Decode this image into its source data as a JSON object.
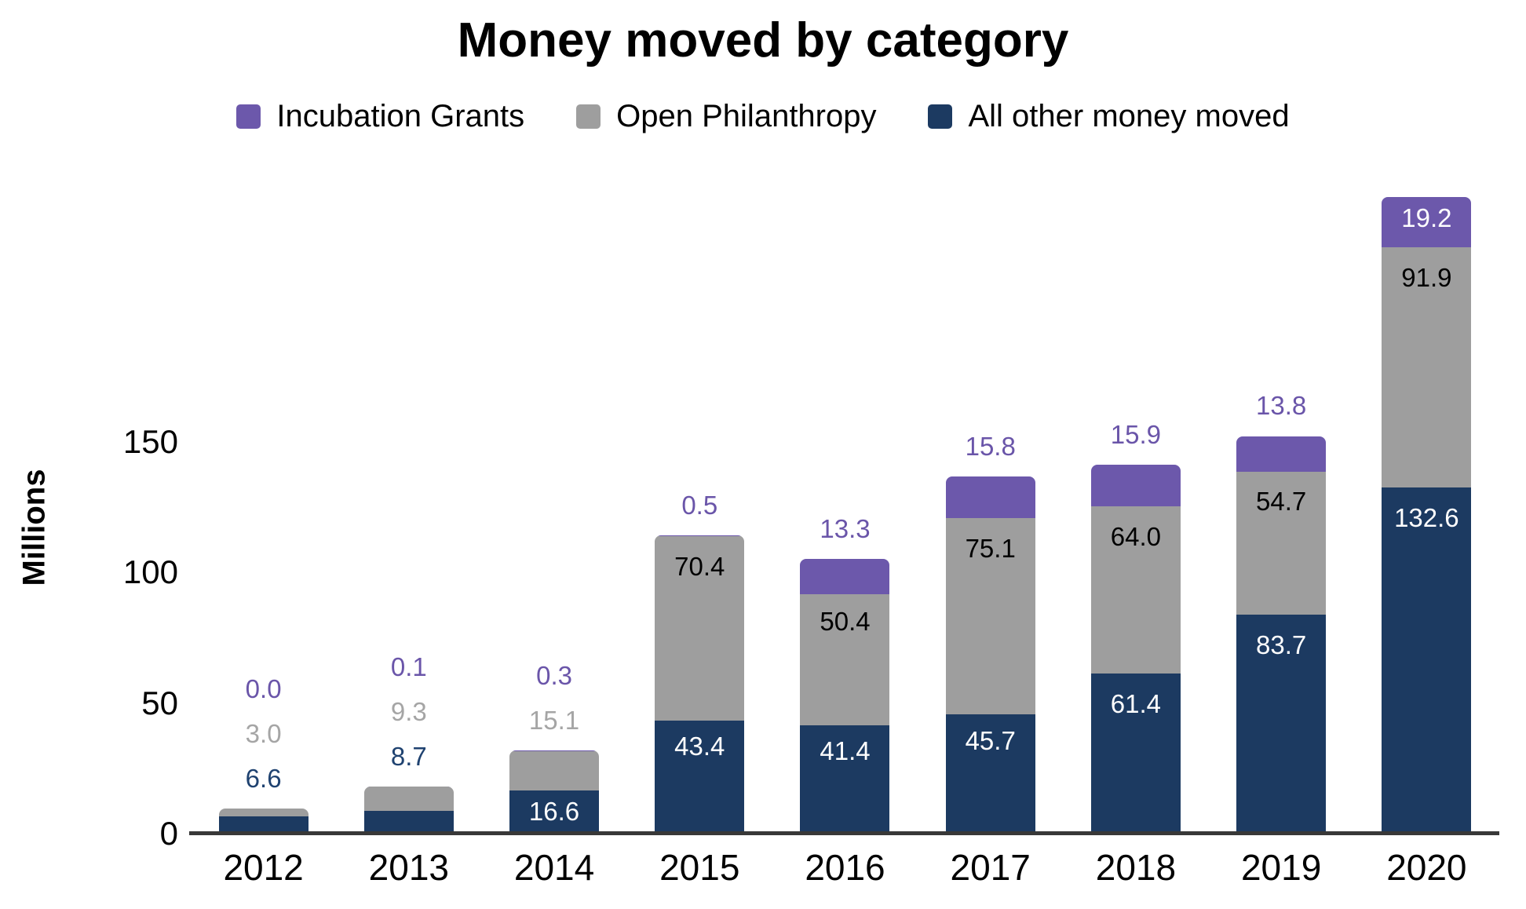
{
  "chart_title": "Money moved by category",
  "y_axis_title": "Millions",
  "chart_data": {
    "type": "bar",
    "stacked": true,
    "title": "Money moved by category",
    "xlabel": "",
    "ylabel": "Millions",
    "legend_position": "top",
    "grid": false,
    "categories": [
      "2012",
      "2013",
      "2014",
      "2015",
      "2016",
      "2017",
      "2018",
      "2019",
      "2020"
    ],
    "yticks": [
      0,
      50,
      100,
      150
    ],
    "ylim": [
      0,
      260
    ],
    "series": [
      {
        "name": "Incubation Grants",
        "color": "#6c58ab",
        "label_color": "#6a55a9",
        "inside_text_color": "#ffffff",
        "values": [
          0.0,
          0.1,
          0.3,
          0.5,
          13.3,
          15.8,
          15.9,
          13.8,
          19.2
        ],
        "label_inside": [
          false,
          false,
          false,
          false,
          false,
          false,
          false,
          false,
          true
        ]
      },
      {
        "name": "Open Philanthropy",
        "color": "#9e9e9e",
        "label_color": "#a5a5a5",
        "inside_text_color": "#000000",
        "values": [
          3.0,
          9.3,
          15.1,
          70.4,
          50.4,
          75.1,
          64.0,
          54.7,
          91.9
        ],
        "label_inside": [
          false,
          false,
          false,
          true,
          true,
          true,
          true,
          true,
          true
        ]
      },
      {
        "name": "All other money moved",
        "color": "#1c3a61",
        "label_color": "#1f4270",
        "inside_text_color": "#ffffff",
        "values": [
          6.6,
          8.7,
          16.6,
          43.4,
          41.4,
          45.7,
          61.4,
          83.7,
          132.6
        ],
        "label_inside": [
          false,
          false,
          true,
          true,
          true,
          true,
          true,
          true,
          true
        ]
      }
    ]
  }
}
